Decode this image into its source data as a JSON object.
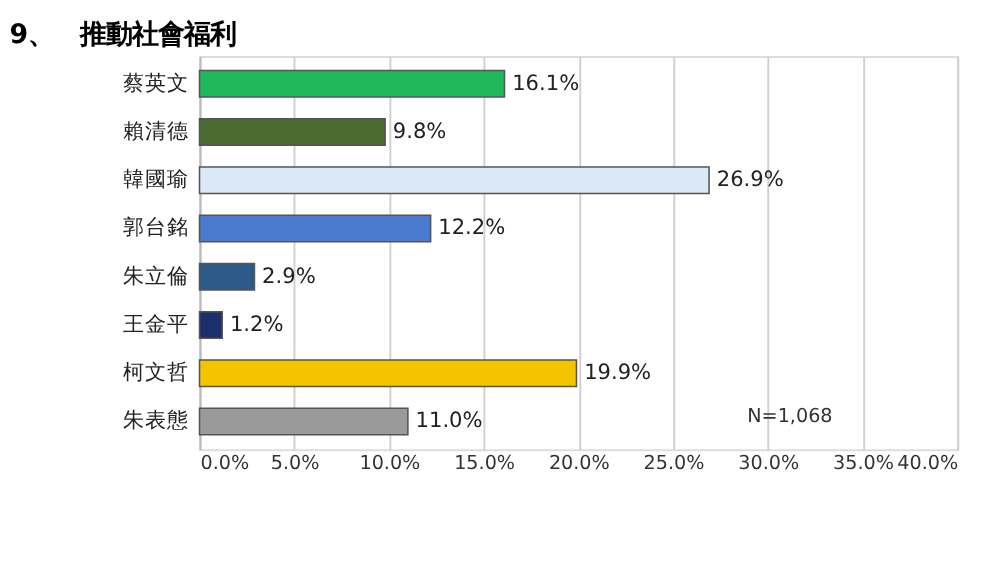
{
  "chart_data": {
    "type": "bar",
    "orientation": "horizontal",
    "title": "9、　推動社會福利",
    "categories": [
      "蔡英文",
      "賴清德",
      "韓國瑜",
      "郭台銘",
      "朱立倫",
      "王金平",
      "柯文哲",
      "朱表態"
    ],
    "values": [
      16.1,
      9.8,
      26.9,
      12.2,
      2.9,
      1.2,
      19.9,
      11.0
    ],
    "colors": [
      "#1fb85a",
      "#4a6b2e",
      "#dbe8f5",
      "#4a7bd0",
      "#2e5a8a",
      "#1a2f6b",
      "#f5c400",
      "#9a9a9a"
    ],
    "value_labels": [
      "16.1%",
      "9.8%",
      "26.9%",
      "12.2%",
      "2.9%",
      "1.2%",
      "19.9%",
      "11.0%"
    ],
    "xlim": [
      0,
      40
    ],
    "xticks": [
      {
        "value": 0,
        "label": "0.0%"
      },
      {
        "value": 5,
        "label": "5.0%"
      },
      {
        "value": 10,
        "label": "10.0%"
      },
      {
        "value": 15,
        "label": "15.0%"
      },
      {
        "value": 20,
        "label": "20.0%"
      },
      {
        "value": 25,
        "label": "25.0%"
      },
      {
        "value": 30,
        "label": "30.0%"
      },
      {
        "value": 35,
        "label": "35.0%"
      },
      {
        "value": 40,
        "label": "40.0%"
      }
    ],
    "grid": "x",
    "annotations": [
      "N=1,068"
    ]
  }
}
